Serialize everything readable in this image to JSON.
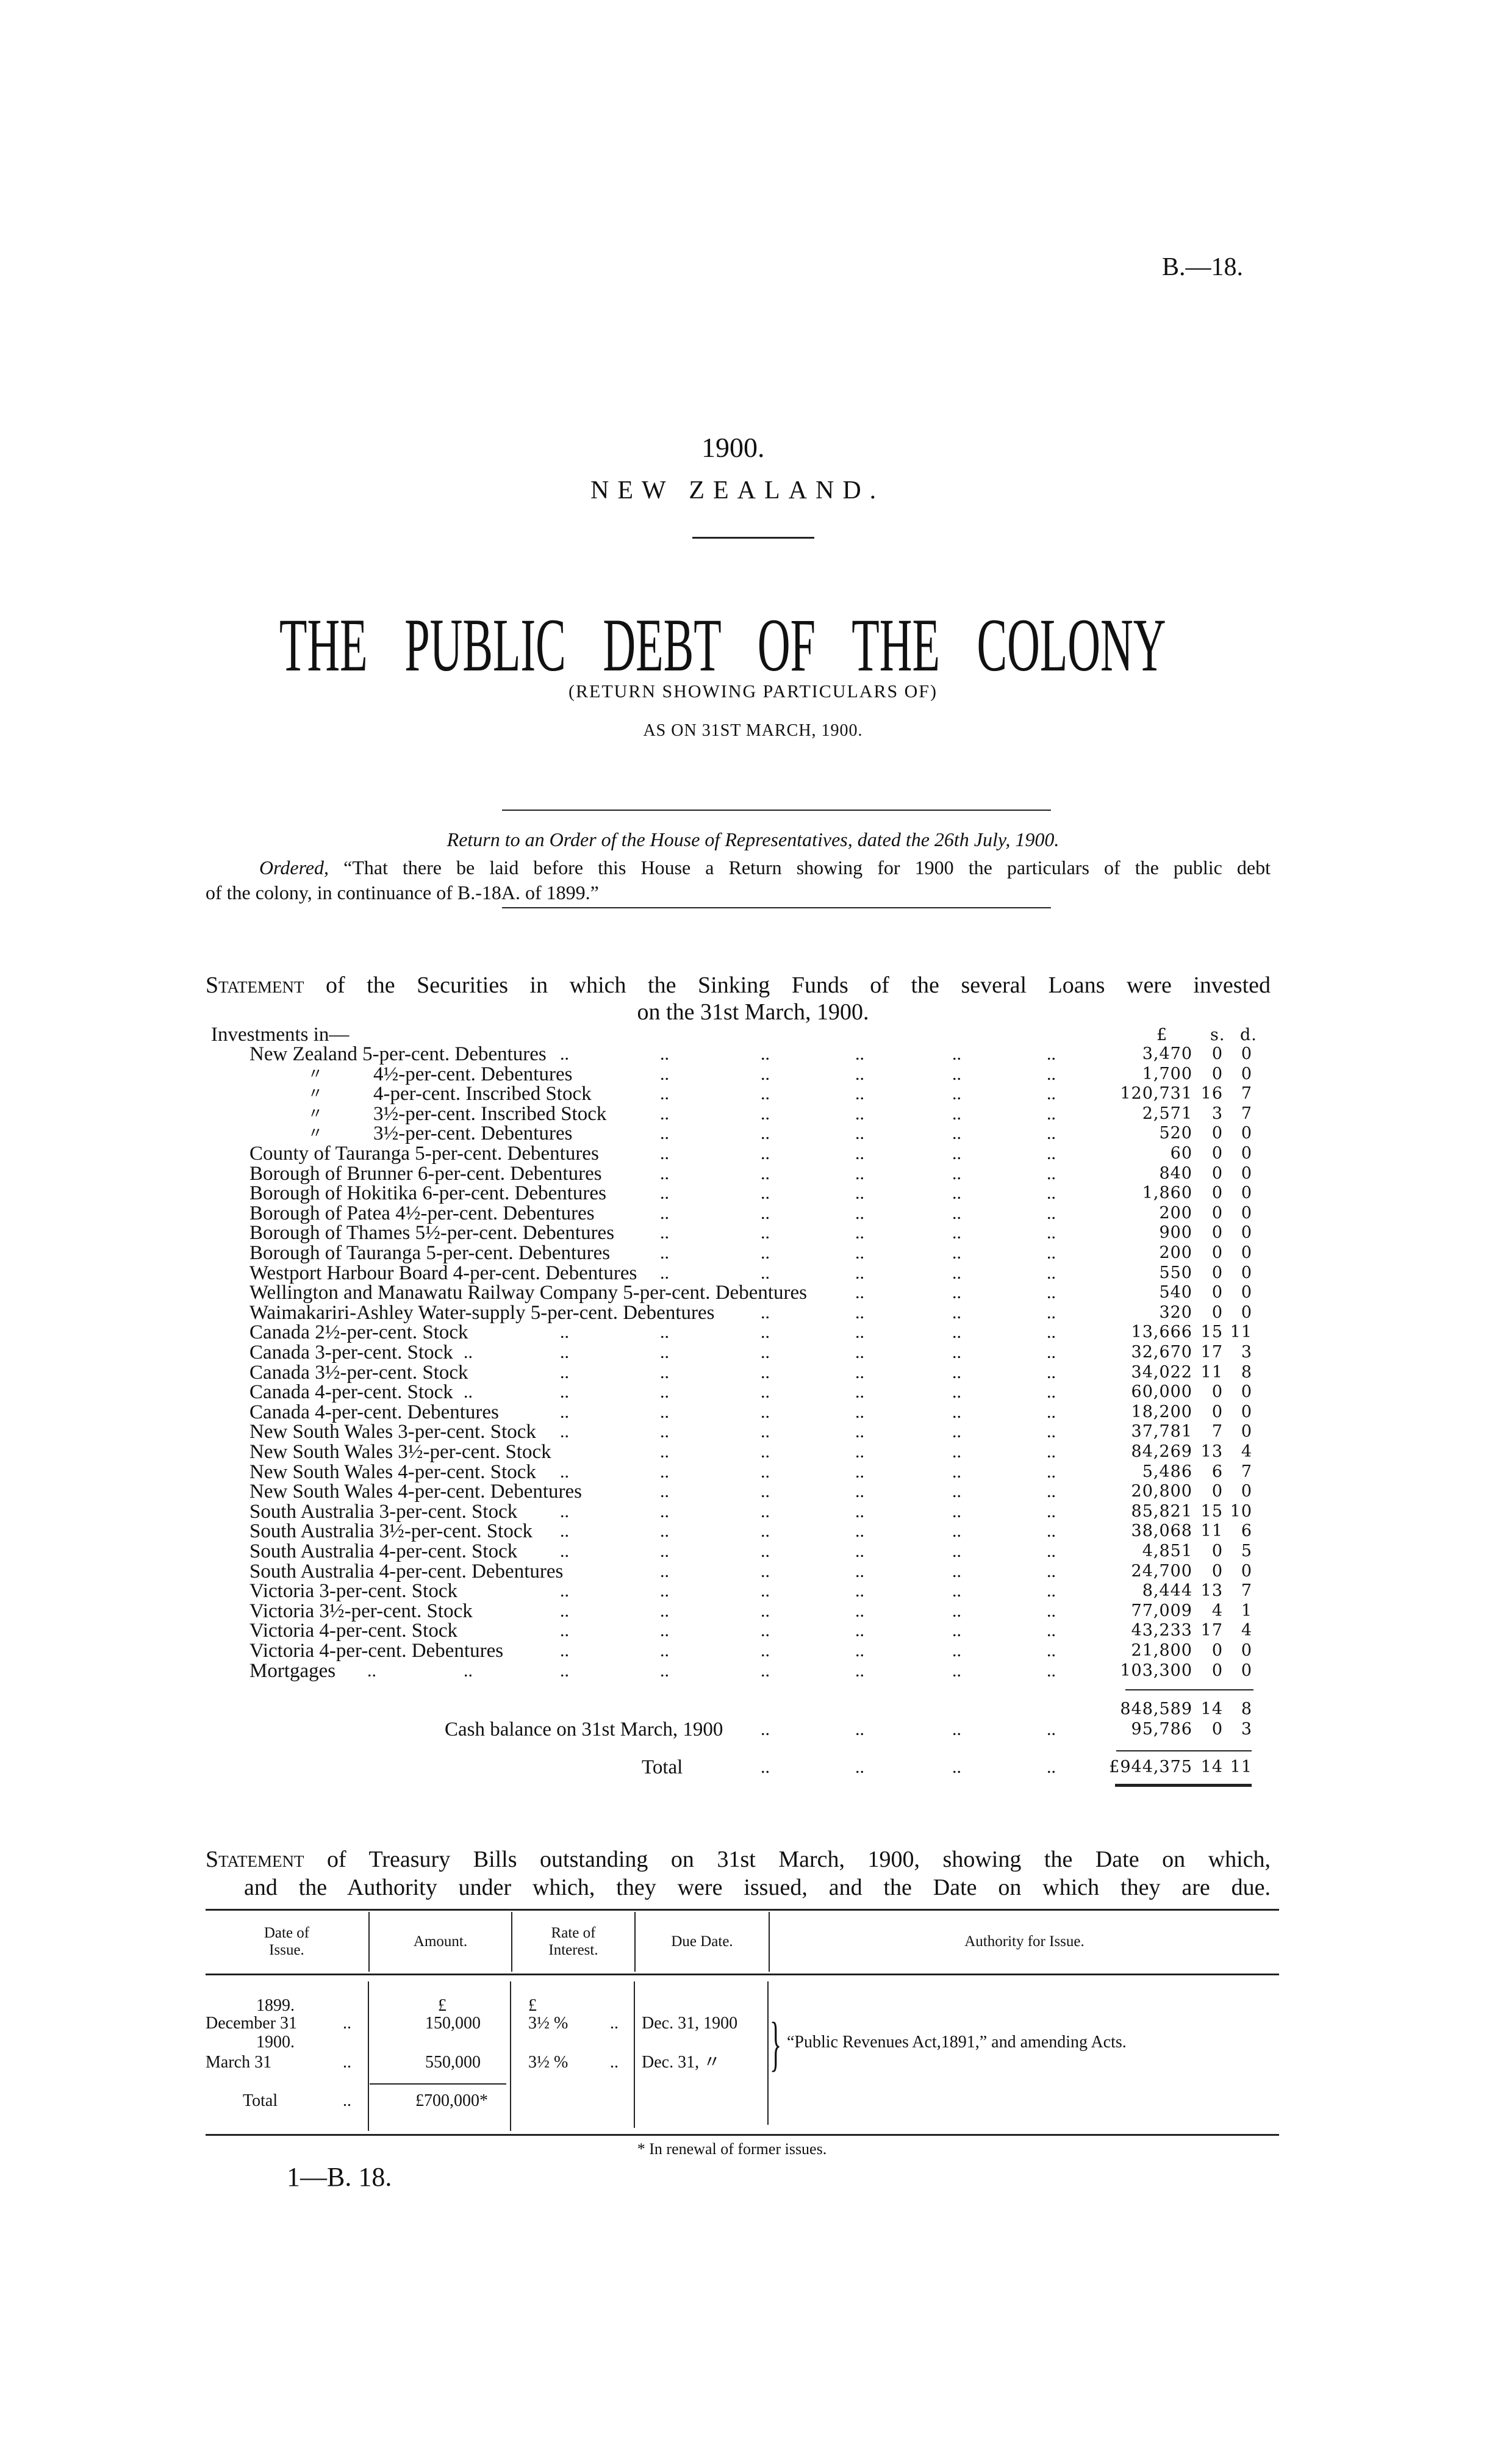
{
  "header": {
    "paper_number": "B.—18.",
    "year": "1900.",
    "country": "NEW ZEALAND.",
    "title": "THE PUBLIC DEBT OF THE COLONY",
    "subtitle": "(RETURN SHOWING PARTICULARS OF)",
    "as_on": "AS ON 31ST MARCH, 1900."
  },
  "order": {
    "return_line": "Return to an Order of the House of Representatives, dated the 26th July, 1900.",
    "ordered_word": "Ordered,",
    "ordered_line1": "“That there be laid before this House a Return showing for 1900 the particulars of the public debt",
    "ordered_line2": "of the colony, in continuance of B.-18A. of 1899.”"
  },
  "sinking_funds": {
    "heading_lead": "Statement",
    "heading_line1": "of the Securities in which the Sinking Funds of the several Loans were invested",
    "heading_line2": "on the 31st March, 1900.",
    "investments_in": "Investments in—",
    "columns": {
      "pounds": "£",
      "shillings": "s.",
      "pence": "d."
    },
    "leader": "..",
    "ditto": "〃",
    "rows": [
      {
        "label": "New Zealand 5-per-cent. Debentures",
        "pounds": "3,470",
        "s": "0",
        "d": "0"
      },
      {
        "ditto": true,
        "label": "4½-per-cent. Debentures",
        "pounds": "1,700",
        "s": "0",
        "d": "0"
      },
      {
        "ditto": true,
        "label": "4-per-cent. Inscribed Stock",
        "pounds": "120,731",
        "s": "16",
        "d": "7"
      },
      {
        "ditto": true,
        "label": "3½-per-cent. Inscribed Stock",
        "pounds": "2,571",
        "s": "3",
        "d": "7"
      },
      {
        "ditto": true,
        "label": "3½-per-cent. Debentures",
        "pounds": "520",
        "s": "0",
        "d": "0"
      },
      {
        "label": "County of Tauranga 5-per-cent. Debentures",
        "pounds": "60",
        "s": "0",
        "d": "0"
      },
      {
        "label": "Borough of Brunner 6-per-cent. Debentures",
        "pounds": "840",
        "s": "0",
        "d": "0"
      },
      {
        "label": "Borough of Hokitika 6-per-cent. Debentures",
        "pounds": "1,860",
        "s": "0",
        "d": "0"
      },
      {
        "label": "Borough of Patea 4½-per-cent. Debentures",
        "pounds": "200",
        "s": "0",
        "d": "0"
      },
      {
        "label": "Borough of Thames 5½-per-cent. Debentures",
        "pounds": "900",
        "s": "0",
        "d": "0"
      },
      {
        "label": "Borough of Tauranga 5-per-cent. Debentures",
        "pounds": "200",
        "s": "0",
        "d": "0"
      },
      {
        "label": "Westport Harbour Board 4-per-cent. Debentures",
        "pounds": "550",
        "s": "0",
        "d": "0"
      },
      {
        "label": "Wellington and Manawatu Railway Company 5-per-cent. Debentures",
        "pounds": "540",
        "s": "0",
        "d": "0"
      },
      {
        "label": "Waimakariri-Ashley Water-supply 5-per-cent. Debentures",
        "pounds": "320",
        "s": "0",
        "d": "0"
      },
      {
        "label": "Canada 2½-per-cent. Stock",
        "pounds": "13,666",
        "s": "15",
        "d": "11"
      },
      {
        "label": "Canada 3-per-cent. Stock",
        "pounds": "32,670",
        "s": "17",
        "d": "3"
      },
      {
        "label": "Canada 3½-per-cent. Stock",
        "pounds": "34,022",
        "s": "11",
        "d": "8"
      },
      {
        "label": "Canada 4-per-cent. Stock",
        "pounds": "60,000",
        "s": "0",
        "d": "0"
      },
      {
        "label": "Canada 4-per-cent. Debentures",
        "pounds": "18,200",
        "s": "0",
        "d": "0"
      },
      {
        "label": "New South Wales 3-per-cent. Stock",
        "pounds": "37,781",
        "s": "7",
        "d": "0"
      },
      {
        "label": "New South Wales 3½-per-cent. Stock",
        "pounds": "84,269",
        "s": "13",
        "d": "4"
      },
      {
        "label": "New South Wales 4-per-cent. Stock",
        "pounds": "5,486",
        "s": "6",
        "d": "7"
      },
      {
        "label": "New South Wales 4-per-cent. Debentures",
        "pounds": "20,800",
        "s": "0",
        "d": "0"
      },
      {
        "label": "South Australia 3-per-cent. Stock",
        "pounds": "85,821",
        "s": "15",
        "d": "10"
      },
      {
        "label": "South Australia 3½-per-cent. Stock",
        "pounds": "38,068",
        "s": "11",
        "d": "6"
      },
      {
        "label": "South Australia 4-per-cent. Stock",
        "pounds": "4,851",
        "s": "0",
        "d": "5"
      },
      {
        "label": "South Australia 4-per-cent. Debentures",
        "pounds": "24,700",
        "s": "0",
        "d": "0"
      },
      {
        "label": "Victoria 3-per-cent. Stock",
        "pounds": "8,444",
        "s": "13",
        "d": "7"
      },
      {
        "label": "Victoria 3½-per-cent. Stock",
        "pounds": "77,009",
        "s": "4",
        "d": "1"
      },
      {
        "label": "Victoria 4-per-cent. Stock",
        "pounds": "43,233",
        "s": "17",
        "d": "4"
      },
      {
        "label": "Victoria 4-per-cent. Debentures",
        "pounds": "21,800",
        "s": "0",
        "d": "0"
      },
      {
        "label": "Mortgages",
        "pounds": "103,300",
        "s": "0",
        "d": "0"
      }
    ],
    "subtotal": {
      "pounds": "848,589",
      "s": "14",
      "d": "8"
    },
    "cash_balance": {
      "label": "Cash balance on 31st March, 1900",
      "pounds": "95,786",
      "s": "0",
      "d": "3"
    },
    "total": {
      "label": "Total",
      "pounds": "£944,375",
      "s": "14",
      "d": "11"
    }
  },
  "treasury_bills": {
    "heading_lead": "Statement",
    "heading_line1": "of Treasury Bills outstanding on 31st March, 1900, showing the Date on which,",
    "heading_line2": "and the Authority under which, they were issued, and the Date on which they are due.",
    "headers": {
      "date_of_issue": [
        "Date of",
        "Issue."
      ],
      "amount": "Amount.",
      "rate": [
        "Rate of",
        "Interest."
      ],
      "due_date": "Due Date.",
      "authority": "Authority for Issue."
    },
    "currency": "£",
    "rows": [
      {
        "year": "1899.",
        "date": "December 31",
        "amount": "150,000",
        "rate": "3½ %",
        "due": "Dec. 31, 1900"
      },
      {
        "year": "1900.",
        "date": "March 31",
        "amount": "550,000",
        "rate": "3½ %",
        "due": "Dec. 31,  〃"
      }
    ],
    "authority": "“Public Revenues Act,1891,” and amending Acts.",
    "total_label": "Total",
    "total_amount": "£700,000*",
    "footnote": "* In renewal of former issues."
  },
  "footer": {
    "signature": "1—B. 18."
  }
}
